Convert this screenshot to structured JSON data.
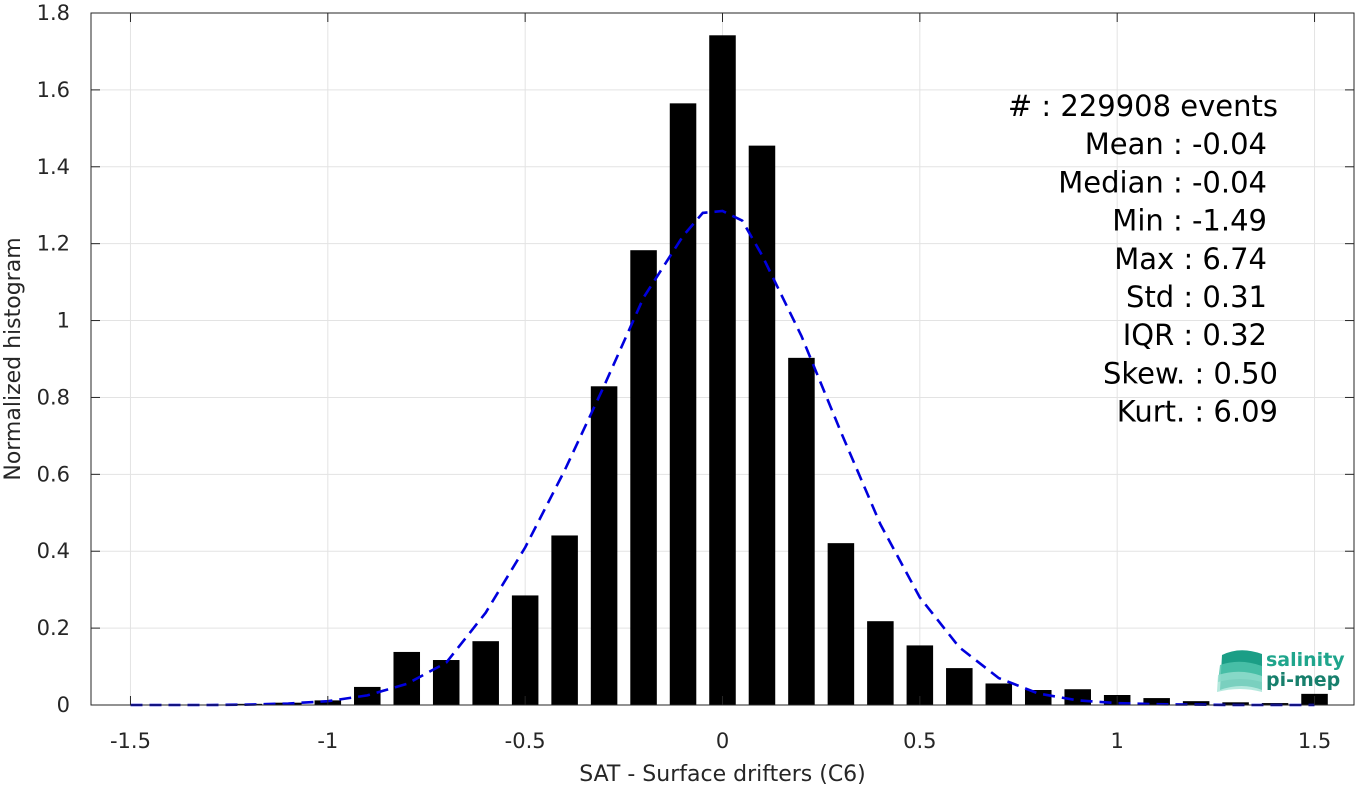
{
  "chart_data": {
    "type": "bar",
    "xlabel": "SAT - Surface drifters (C6)",
    "ylabel": "Normalized histogram",
    "xlim": [
      -1.6,
      1.6
    ],
    "ylim": [
      0,
      1.8
    ],
    "grid": true,
    "xticks": [
      -1.5,
      -1,
      -0.5,
      0,
      0.5,
      1,
      1.5
    ],
    "xtick_labels": [
      "-1.5",
      "-1",
      "-0.5",
      "0",
      "0.5",
      "1",
      "1.5"
    ],
    "yticks": [
      0,
      0.2,
      0.4,
      0.6,
      0.8,
      1,
      1.2,
      1.4,
      1.6,
      1.8
    ],
    "ytick_labels": [
      "0",
      "0.2",
      "0.4",
      "0.6",
      "0.8",
      "1",
      "1.2",
      "1.4",
      "1.6",
      "1.8"
    ],
    "bar_color": "#000000",
    "bars": [
      {
        "x": -1.5,
        "y": 0.0
      },
      {
        "x": -1.4,
        "y": 0.0
      },
      {
        "x": -1.3,
        "y": 0.0
      },
      {
        "x": -1.2,
        "y": 0.003
      },
      {
        "x": -1.1,
        "y": 0.006
      },
      {
        "x": -1.0,
        "y": 0.012
      },
      {
        "x": -0.9,
        "y": 0.047
      },
      {
        "x": -0.8,
        "y": 0.138
      },
      {
        "x": -0.7,
        "y": 0.117
      },
      {
        "x": -0.6,
        "y": 0.166
      },
      {
        "x": -0.5,
        "y": 0.285
      },
      {
        "x": -0.4,
        "y": 0.441
      },
      {
        "x": -0.3,
        "y": 0.829
      },
      {
        "x": -0.2,
        "y": 1.183
      },
      {
        "x": -0.1,
        "y": 1.565
      },
      {
        "x": 0.0,
        "y": 1.742
      },
      {
        "x": 0.1,
        "y": 1.455
      },
      {
        "x": 0.2,
        "y": 0.903
      },
      {
        "x": 0.3,
        "y": 0.421
      },
      {
        "x": 0.4,
        "y": 0.218
      },
      {
        "x": 0.5,
        "y": 0.155
      },
      {
        "x": 0.6,
        "y": 0.096
      },
      {
        "x": 0.7,
        "y": 0.056
      },
      {
        "x": 0.8,
        "y": 0.039
      },
      {
        "x": 0.9,
        "y": 0.041
      },
      {
        "x": 1.0,
        "y": 0.026
      },
      {
        "x": 1.1,
        "y": 0.018
      },
      {
        "x": 1.2,
        "y": 0.01
      },
      {
        "x": 1.3,
        "y": 0.007
      },
      {
        "x": 1.4,
        "y": 0.005
      },
      {
        "x": 1.5,
        "y": 0.029
      }
    ],
    "fit_curve": {
      "type": "gaussian",
      "color": "#0000dd",
      "style": "dashed",
      "points": [
        {
          "x": -1.5,
          "y": 0.0
        },
        {
          "x": -1.4,
          "y": 0.0
        },
        {
          "x": -1.3,
          "y": 0.0
        },
        {
          "x": -1.2,
          "y": 0.001
        },
        {
          "x": -1.1,
          "y": 0.004
        },
        {
          "x": -1.0,
          "y": 0.01
        },
        {
          "x": -0.9,
          "y": 0.025
        },
        {
          "x": -0.8,
          "y": 0.055
        },
        {
          "x": -0.7,
          "y": 0.11
        },
        {
          "x": -0.6,
          "y": 0.24
        },
        {
          "x": -0.5,
          "y": 0.41
        },
        {
          "x": -0.4,
          "y": 0.61
        },
        {
          "x": -0.3,
          "y": 0.83
        },
        {
          "x": -0.2,
          "y": 1.06
        },
        {
          "x": -0.1,
          "y": 1.22
        },
        {
          "x": -0.05,
          "y": 1.28
        },
        {
          "x": 0.0,
          "y": 1.285
        },
        {
          "x": 0.05,
          "y": 1.26
        },
        {
          "x": 0.1,
          "y": 1.17
        },
        {
          "x": 0.2,
          "y": 0.96
        },
        {
          "x": 0.3,
          "y": 0.71
        },
        {
          "x": 0.4,
          "y": 0.47
        },
        {
          "x": 0.5,
          "y": 0.28
        },
        {
          "x": 0.6,
          "y": 0.15
        },
        {
          "x": 0.7,
          "y": 0.07
        },
        {
          "x": 0.8,
          "y": 0.03
        },
        {
          "x": 0.9,
          "y": 0.012
        },
        {
          "x": 1.0,
          "y": 0.005
        },
        {
          "x": 1.1,
          "y": 0.002
        },
        {
          "x": 1.2,
          "y": 0.001
        },
        {
          "x": 1.3,
          "y": 0.0
        },
        {
          "x": 1.4,
          "y": 0.0
        },
        {
          "x": 1.5,
          "y": 0.0
        }
      ]
    },
    "annotations": [
      "#  : 229908 events",
      "Mean : -0.04",
      "Median : -0.04",
      "Min : -1.49",
      "Max : 6.74",
      "Std : 0.31",
      "IQR : 0.32",
      "Skew. : 0.50",
      "Kurt. : 6.09"
    ]
  },
  "logo": {
    "line1": "salinity",
    "line2": "pi-mep",
    "color": "#1fa58c"
  }
}
